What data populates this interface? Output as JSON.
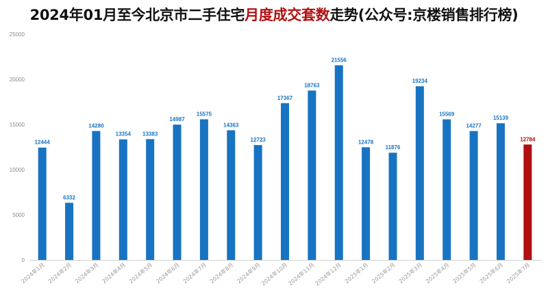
{
  "title": {
    "part1": "2024年01月至今北京市二手住宅",
    "highlight": "月度成交套数",
    "part2": "走势(公众号:京楼销售排行榜)"
  },
  "colors": {
    "bar": "#1874c2",
    "bar_highlight": "#b01010",
    "label": "#1874c2",
    "label_highlight": "#b01010",
    "title_highlight": "#b01010"
  },
  "chart_data": {
    "type": "bar",
    "title": "2024年01月至今北京市二手住宅月度成交套数走势(公众号:京楼销售排行榜)",
    "xlabel": "",
    "ylabel": "",
    "ylim": [
      0,
      25000
    ],
    "yticks": [
      0,
      5000,
      10000,
      15000,
      20000,
      25000
    ],
    "grid": false,
    "categories": [
      "2024年1月",
      "2024年2月",
      "2024年3月",
      "2024年4月",
      "2024年5月",
      "2024年6月",
      "2024年7月",
      "2024年8月",
      "2024年9月",
      "2024年10月",
      "2024年11月",
      "2024年12月",
      "2025年1月",
      "2025年2月",
      "2025年3月",
      "2025年4月",
      "2025年5月",
      "2025年6月",
      "2025年7月"
    ],
    "values": [
      12444,
      6332,
      14280,
      13354,
      13383,
      14987,
      15575,
      14363,
      12723,
      17367,
      18763,
      21556,
      12478,
      11876,
      19234,
      15569,
      14277,
      15139,
      12784
    ],
    "highlight_index": 18
  }
}
